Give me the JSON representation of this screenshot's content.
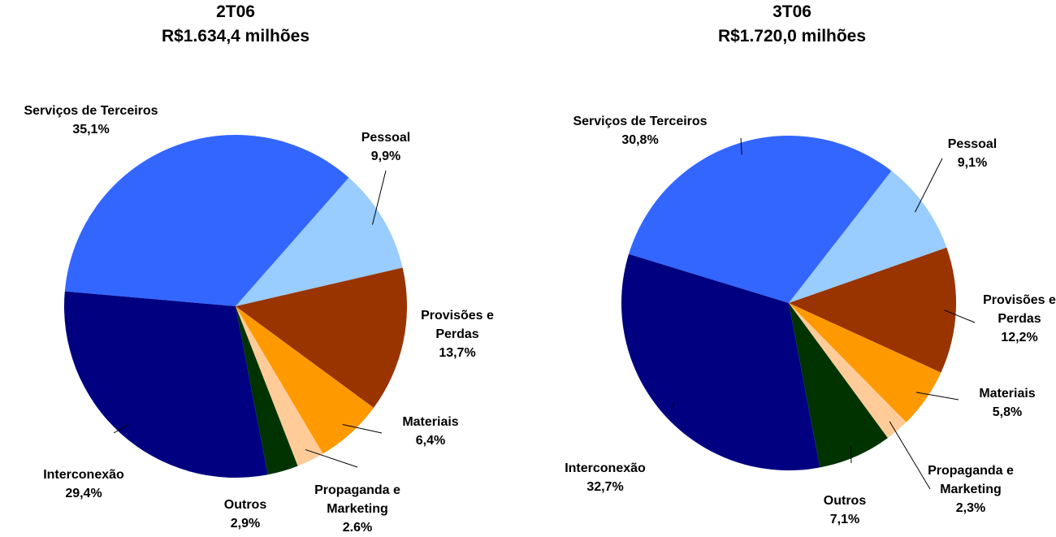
{
  "chart_data": [
    {
      "type": "pie",
      "title": "2T06",
      "subtitle": "R$1.634,4 milhões",
      "categories": [
        "Serviços de Terceiros",
        "Pessoal",
        "Provisões e Perdas",
        "Materiais",
        "Propaganda e Marketing",
        "Outros",
        "Interconexão"
      ],
      "values": [
        35.1,
        9.9,
        13.7,
        6.4,
        2.6,
        2.9,
        29.4
      ],
      "value_labels": [
        "35,1%",
        "9,9%",
        "13,7%",
        "6,4%",
        "2.6%",
        "2,9%",
        "29,4%"
      ],
      "colors": [
        "#3366ff",
        "#99ccff",
        "#993300",
        "#ff9900",
        "#ffcc99",
        "#003300",
        "#000080"
      ]
    },
    {
      "type": "pie",
      "title": "3T06",
      "subtitle": "R$1.720,0 milhões",
      "categories": [
        "Serviços de Terceiros",
        "Pessoal",
        "Provisões e Perdas",
        "Materiais",
        "Propaganda e Marketing",
        "Outros",
        "Interconexão"
      ],
      "values": [
        30.8,
        9.1,
        12.2,
        5.8,
        2.3,
        7.1,
        32.7
      ],
      "value_labels": [
        "30,8%",
        "9,1%",
        "12,2%",
        "5,8%",
        "2,3%",
        "7,1%",
        "32,7%"
      ],
      "colors": [
        "#3366ff",
        "#99ccff",
        "#993300",
        "#ff9900",
        "#ffcc99",
        "#003300",
        "#000080"
      ]
    }
  ]
}
